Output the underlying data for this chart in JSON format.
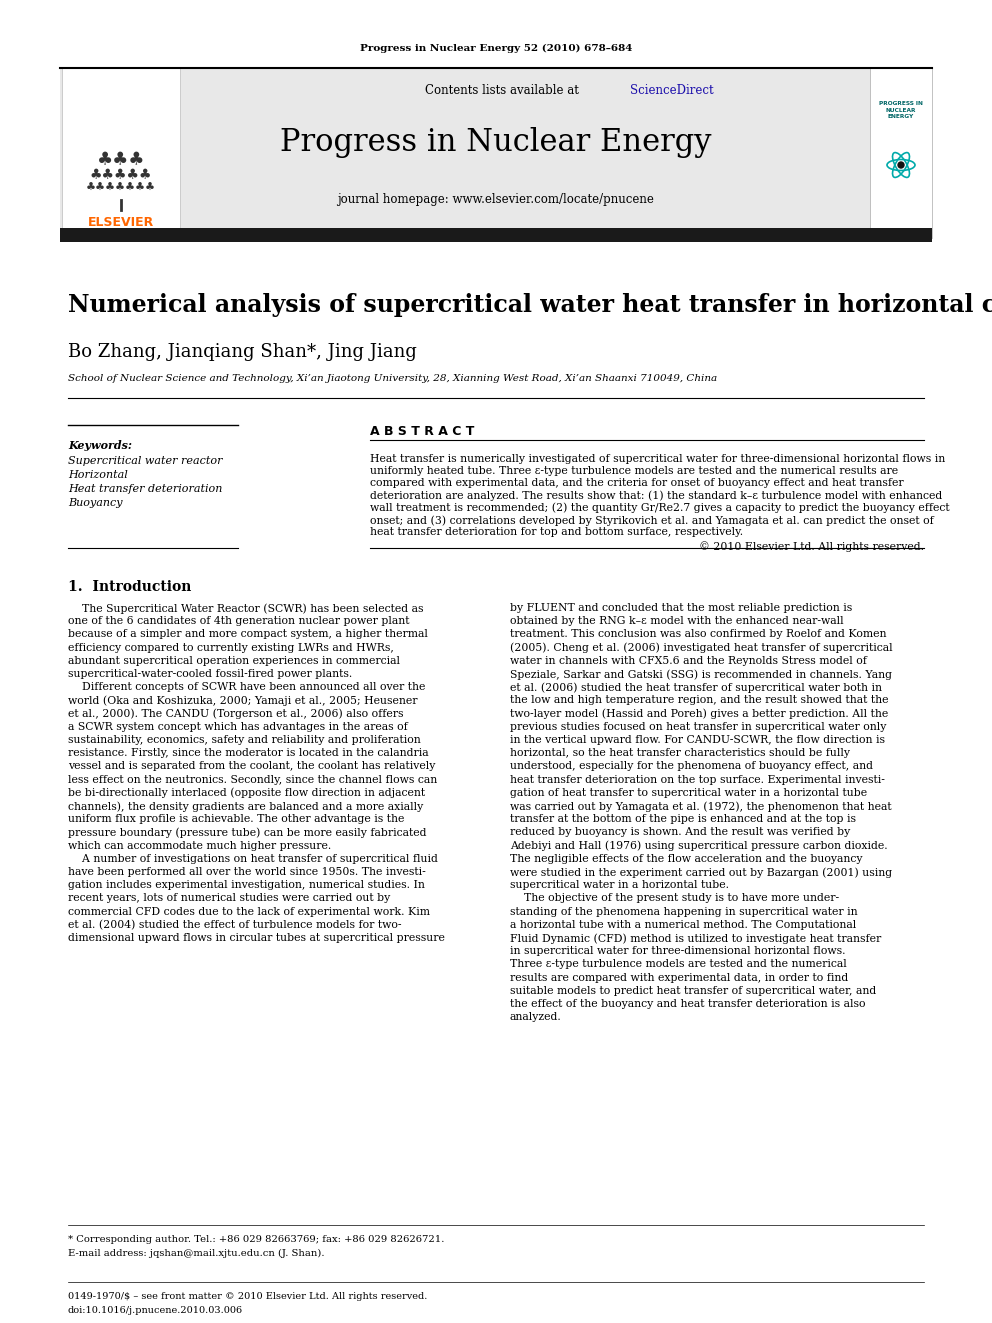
{
  "page_title": "Progress in Nuclear Energy 52 (2010) 678–684",
  "journal_name": "Progress in Nuclear Energy",
  "contents_line_plain": "Contents lists available at ",
  "contents_line_link": "ScienceDirect",
  "journal_homepage": "journal homepage: www.elsevier.com/locate/pnucene",
  "article_title": "Numerical analysis of supercritical water heat transfer in horizontal circular tube",
  "authors": "Bo Zhang, Jianqiang Shan*, Jing Jiang",
  "affiliation": "School of Nuclear Science and Technology, Xi’an Jiaotong University, 28, Xianning West Road, Xi’an Shaanxi 710049, China",
  "abstract_title": "A B S T R A C T",
  "keywords_title": "Keywords:",
  "keywords": [
    "Supercritical water reactor",
    "Horizontal",
    "Heat transfer deterioration",
    "Buoyancy"
  ],
  "abstract_lines": [
    "Heat transfer is numerically investigated of supercritical water for three-dimensional horizontal flows in",
    "uniformly heated tube. Three ε-type turbulence models are tested and the numerical results are",
    "compared with experimental data, and the criteria for onset of buoyancy effect and heat transfer",
    "deterioration are analyzed. The results show that: (1) the standard k–ε turbulence model with enhanced",
    "wall treatment is recommended; (2) the quantity Gr/Re2.7 gives a capacity to predict the buoyancy effect",
    "onset; and (3) correlations developed by Styrikovich et al. and Yamagata et al. can predict the onset of",
    "heat transfer deterioration for top and bottom surface, respectively."
  ],
  "copyright": "© 2010 Elsevier Ltd. All rights reserved.",
  "section1_title": "1.  Introduction",
  "intro_left_lines": [
    "    The Supercritical Water Reactor (SCWR) has been selected as",
    "one of the 6 candidates of 4th generation nuclear power plant",
    "because of a simpler and more compact system, a higher thermal",
    "efficiency compared to currently existing LWRs and HWRs,",
    "abundant supercritical operation experiences in commercial",
    "supercritical-water-cooled fossil-fired power plants.",
    "    Different concepts of SCWR have been announced all over the",
    "world (Oka and Koshizuka, 2000; Yamaji et al., 2005; Heusener",
    "et al., 2000). The CANDU (Torgerson et al., 2006) also offers",
    "a SCWR system concept which has advantages in the areas of",
    "sustainability, economics, safety and reliability and proliferation",
    "resistance. Firstly, since the moderator is located in the calandria",
    "vessel and is separated from the coolant, the coolant has relatively",
    "less effect on the neutronics. Secondly, since the channel flows can",
    "be bi-directionally interlaced (opposite flow direction in adjacent",
    "channels), the density gradients are balanced and a more axially",
    "uniform flux profile is achievable. The other advantage is the",
    "pressure boundary (pressure tube) can be more easily fabricated",
    "which can accommodate much higher pressure.",
    "    A number of investigations on heat transfer of supercritical fluid",
    "have been performed all over the world since 1950s. The investi-",
    "gation includes experimental investigation, numerical studies. In",
    "recent years, lots of numerical studies were carried out by",
    "commercial CFD codes due to the lack of experimental work. Kim",
    "et al. (2004) studied the effect of turbulence models for two-",
    "dimensional upward flows in circular tubes at supercritical pressure"
  ],
  "intro_right_lines": [
    "by FLUENT and concluded that the most reliable prediction is",
    "obtained by the RNG k–ε model with the enhanced near-wall",
    "treatment. This conclusion was also confirmed by Roelof and Komen",
    "(2005). Cheng et al. (2006) investigated heat transfer of supercritical",
    "water in channels with CFX5.6 and the Reynolds Stress model of",
    "Speziale, Sarkar and Gatski (SSG) is recommended in channels. Yang",
    "et al. (2006) studied the heat transfer of supercritical water both in",
    "the low and high temperature region, and the result showed that the",
    "two-layer model (Hassid and Poreh) gives a better prediction. All the",
    "previous studies focused on heat transfer in supercritical water only",
    "in the vertical upward flow. For CANDU-SCWR, the flow direction is",
    "horizontal, so the heat transfer characteristics should be fully",
    "understood, especially for the phenomena of buoyancy effect, and",
    "heat transfer deterioration on the top surface. Experimental investi-",
    "gation of heat transfer to supercritical water in a horizontal tube",
    "was carried out by Yamagata et al. (1972), the phenomenon that heat",
    "transfer at the bottom of the pipe is enhanced and at the top is",
    "reduced by buoyancy is shown. And the result was verified by",
    "Adebiyi and Hall (1976) using supercritical pressure carbon dioxide.",
    "The negligible effects of the flow acceleration and the buoyancy",
    "were studied in the experiment carried out by Bazargan (2001) using",
    "supercritical water in a horizontal tube.",
    "    The objective of the present study is to have more under-",
    "standing of the phenomena happening in supercritical water in",
    "a horizontal tube with a numerical method. The Computational",
    "Fluid Dynamic (CFD) method is utilized to investigate heat transfer",
    "in supercritical water for three-dimensional horizontal flows.",
    "Three ε-type turbulence models are tested and the numerical",
    "results are compared with experimental data, in order to find",
    "suitable models to predict heat transfer of supercritical water, and",
    "the effect of the buoyancy and heat transfer deterioration is also",
    "analyzed."
  ],
  "footnote_star": "* Corresponding author. Tel.: +86 029 82663769; fax: +86 029 82626721.",
  "footnote_email": "E-mail address: jqshan@mail.xjtu.edu.cn (J. Shan).",
  "footer_issn": "0149-1970/$ – see front matter © 2010 Elsevier Ltd. All rights reserved.",
  "footer_doi": "doi:10.1016/j.pnucene.2010.03.006",
  "bg_color": "#ffffff",
  "header_bg": "#e8e8e8",
  "dark_bar_color": "#1a1a1a",
  "link_color": "#1a0dab",
  "elsevier_orange": "#ff6600",
  "title_color": "#000000",
  "text_color": "#000000"
}
